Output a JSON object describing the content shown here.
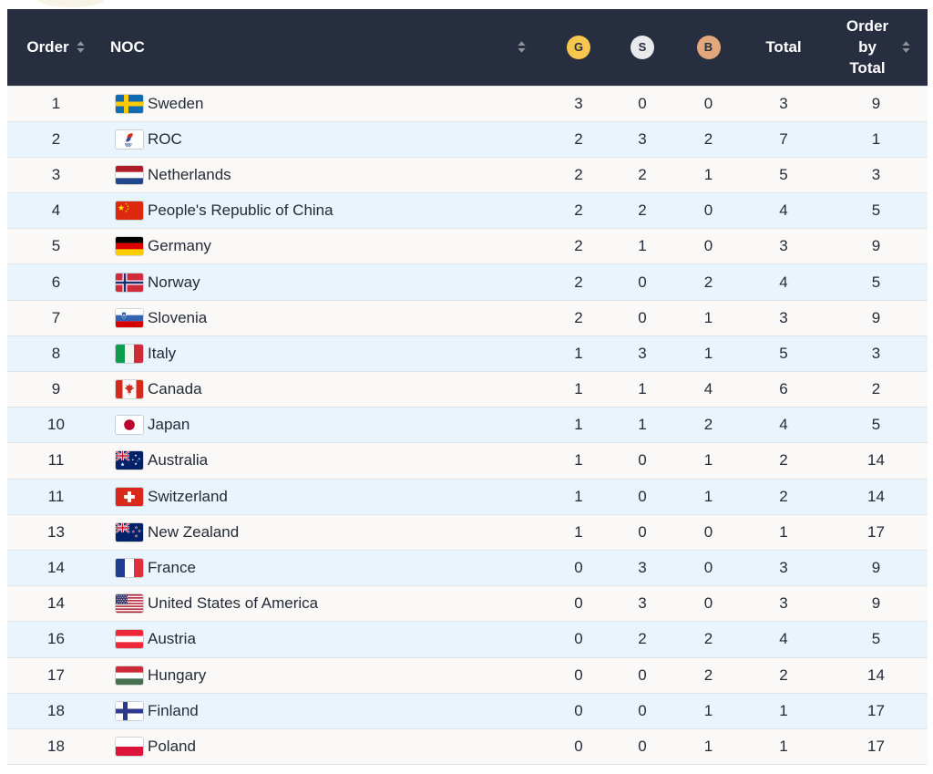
{
  "columns": {
    "order": "Order",
    "noc": "NOC",
    "gold": "G",
    "silver": "S",
    "bronze": "B",
    "total": "Total",
    "order_by_total": "Order by Total"
  },
  "rows": [
    {
      "order": "1",
      "noc": "Sweden",
      "flag": "se",
      "gold": "3",
      "silver": "0",
      "bronze": "0",
      "total": "3",
      "order_by_total": "9"
    },
    {
      "order": "2",
      "noc": "ROC",
      "flag": "roc",
      "gold": "2",
      "silver": "3",
      "bronze": "2",
      "total": "7",
      "order_by_total": "1"
    },
    {
      "order": "3",
      "noc": "Netherlands",
      "flag": "nl",
      "gold": "2",
      "silver": "2",
      "bronze": "1",
      "total": "5",
      "order_by_total": "3"
    },
    {
      "order": "4",
      "noc": "People's Republic of China",
      "flag": "cn",
      "gold": "2",
      "silver": "2",
      "bronze": "0",
      "total": "4",
      "order_by_total": "5"
    },
    {
      "order": "5",
      "noc": "Germany",
      "flag": "de",
      "gold": "2",
      "silver": "1",
      "bronze": "0",
      "total": "3",
      "order_by_total": "9"
    },
    {
      "order": "6",
      "noc": "Norway",
      "flag": "no",
      "gold": "2",
      "silver": "0",
      "bronze": "2",
      "total": "4",
      "order_by_total": "5"
    },
    {
      "order": "7",
      "noc": "Slovenia",
      "flag": "si",
      "gold": "2",
      "silver": "0",
      "bronze": "1",
      "total": "3",
      "order_by_total": "9"
    },
    {
      "order": "8",
      "noc": "Italy",
      "flag": "it",
      "gold": "1",
      "silver": "3",
      "bronze": "1",
      "total": "5",
      "order_by_total": "3"
    },
    {
      "order": "9",
      "noc": "Canada",
      "flag": "ca",
      "gold": "1",
      "silver": "1",
      "bronze": "4",
      "total": "6",
      "order_by_total": "2"
    },
    {
      "order": "10",
      "noc": "Japan",
      "flag": "jp",
      "gold": "1",
      "silver": "1",
      "bronze": "2",
      "total": "4",
      "order_by_total": "5"
    },
    {
      "order": "11",
      "noc": "Australia",
      "flag": "au",
      "gold": "1",
      "silver": "0",
      "bronze": "1",
      "total": "2",
      "order_by_total": "14"
    },
    {
      "order": "11",
      "noc": "Switzerland",
      "flag": "ch",
      "gold": "1",
      "silver": "0",
      "bronze": "1",
      "total": "2",
      "order_by_total": "14"
    },
    {
      "order": "13",
      "noc": "New Zealand",
      "flag": "nz",
      "gold": "1",
      "silver": "0",
      "bronze": "0",
      "total": "1",
      "order_by_total": "17"
    },
    {
      "order": "14",
      "noc": "France",
      "flag": "fr",
      "gold": "0",
      "silver": "3",
      "bronze": "0",
      "total": "3",
      "order_by_total": "9"
    },
    {
      "order": "14",
      "noc": "United States of America",
      "flag": "us",
      "gold": "0",
      "silver": "3",
      "bronze": "0",
      "total": "3",
      "order_by_total": "9"
    },
    {
      "order": "16",
      "noc": "Austria",
      "flag": "at",
      "gold": "0",
      "silver": "2",
      "bronze": "2",
      "total": "4",
      "order_by_total": "5"
    },
    {
      "order": "17",
      "noc": "Hungary",
      "flag": "hu",
      "gold": "0",
      "silver": "0",
      "bronze": "2",
      "total": "2",
      "order_by_total": "14"
    },
    {
      "order": "18",
      "noc": "Finland",
      "flag": "fi",
      "gold": "0",
      "silver": "0",
      "bronze": "1",
      "total": "1",
      "order_by_total": "17"
    },
    {
      "order": "18",
      "noc": "Poland",
      "flag": "pl",
      "gold": "0",
      "silver": "0",
      "bronze": "1",
      "total": "1",
      "order_by_total": "17"
    }
  ],
  "colors": {
    "header_bg": "#272e3f",
    "header_text": "#ffffff",
    "row_odd": "#faf9f7",
    "row_even": "#e9f4fc",
    "divider": "#dfe5e9",
    "text": "#242b38",
    "sort": "#8d949e",
    "gold": "#f7c64d",
    "silver": "#e9eaeb",
    "bronze": "#e1a87b",
    "badge_text": "#272e3f"
  }
}
